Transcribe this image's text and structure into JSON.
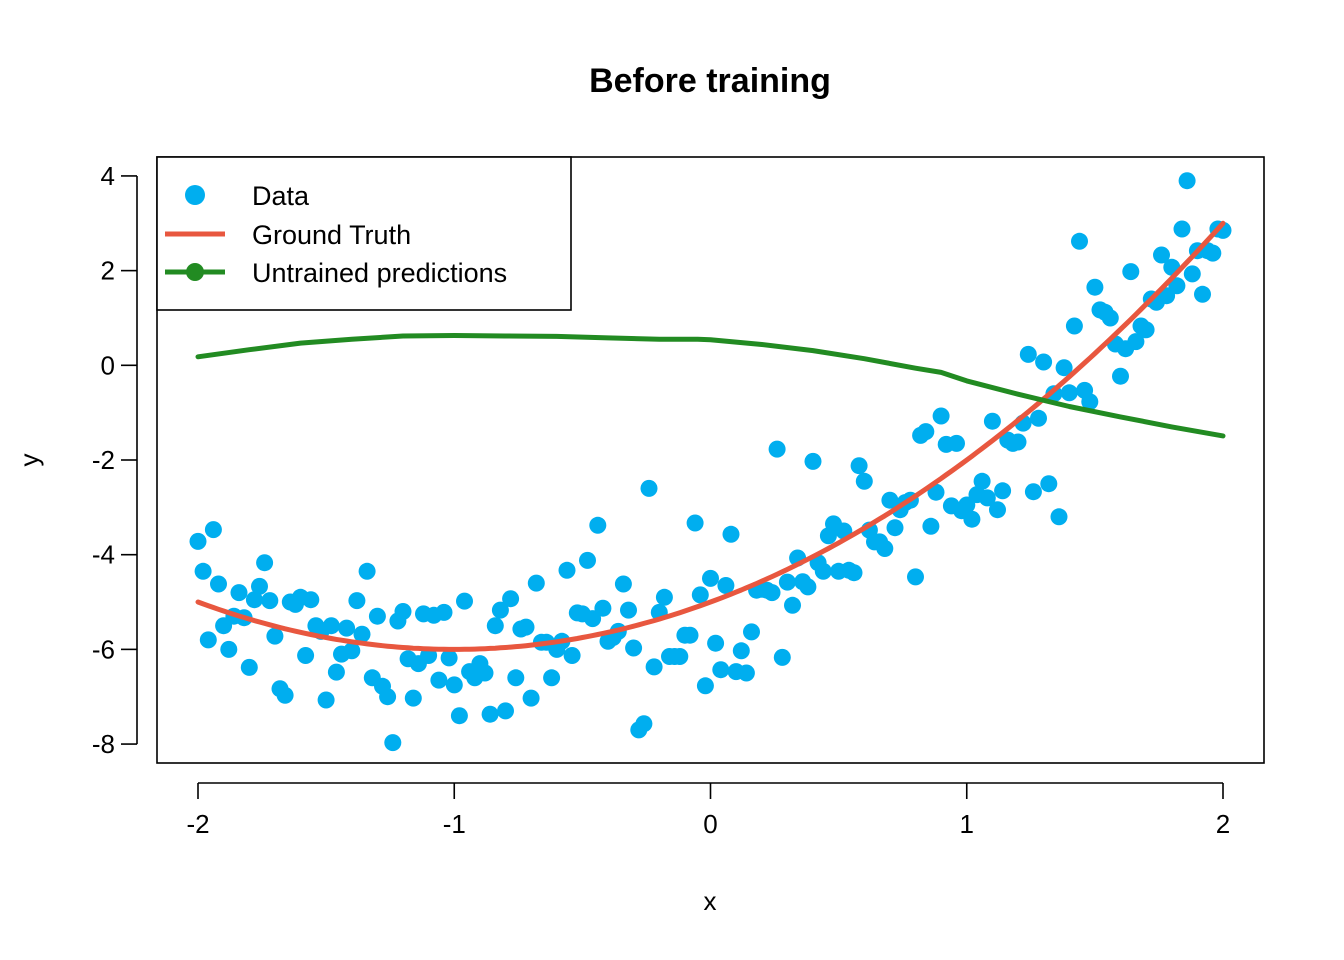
{
  "chart_data": {
    "type": "scatter",
    "title": "Before training",
    "xlabel": "x",
    "ylabel": "y",
    "xlim": [
      -2.16,
      2.16
    ],
    "ylim": [
      -8.4,
      4.4
    ],
    "grid": false,
    "legend_position": "top-left",
    "x_ticks": [
      "-2",
      "-1",
      "0",
      "1",
      "2"
    ],
    "y_ticks": [
      "-8",
      "-6",
      "-4",
      "-2",
      "0",
      "2",
      "4"
    ],
    "colors": {
      "data": "#00AEEF",
      "ground_truth": "#E8573F",
      "untrained": "#228B22"
    },
    "legend": [
      "Data",
      "Ground Truth",
      "Untrained predictions"
    ],
    "series": [
      {
        "name": "Data",
        "kind": "points",
        "points": [
          [
            -2.0,
            -3.72
          ],
          [
            -1.98,
            -4.35
          ],
          [
            -1.96,
            -5.8
          ],
          [
            -1.94,
            -3.47
          ],
          [
            -1.92,
            -4.62
          ],
          [
            -1.9,
            -5.5
          ],
          [
            -1.88,
            -6.0
          ],
          [
            -1.86,
            -5.3
          ],
          [
            -1.84,
            -4.8
          ],
          [
            -1.82,
            -5.33
          ],
          [
            -1.8,
            -6.38
          ],
          [
            -1.78,
            -4.95
          ],
          [
            -1.76,
            -4.67
          ],
          [
            -1.74,
            -4.17
          ],
          [
            -1.72,
            -4.97
          ],
          [
            -1.7,
            -5.72
          ],
          [
            -1.68,
            -6.83
          ],
          [
            -1.66,
            -6.97
          ],
          [
            -1.64,
            -5.0
          ],
          [
            -1.62,
            -5.05
          ],
          [
            -1.6,
            -4.9
          ],
          [
            -1.58,
            -6.13
          ],
          [
            -1.56,
            -4.95
          ],
          [
            -1.54,
            -5.5
          ],
          [
            -1.52,
            -5.62
          ],
          [
            -1.5,
            -7.07
          ],
          [
            -1.48,
            -5.5
          ],
          [
            -1.46,
            -6.48
          ],
          [
            -1.44,
            -6.1
          ],
          [
            -1.42,
            -5.55
          ],
          [
            -1.4,
            -6.03
          ],
          [
            -1.38,
            -4.97
          ],
          [
            -1.36,
            -5.68
          ],
          [
            -1.34,
            -4.35
          ],
          [
            -1.32,
            -6.6
          ],
          [
            -1.3,
            -5.3
          ],
          [
            -1.28,
            -6.78
          ],
          [
            -1.26,
            -7.0
          ],
          [
            -1.24,
            -7.97
          ],
          [
            -1.22,
            -5.4
          ],
          [
            -1.2,
            -5.2
          ],
          [
            -1.18,
            -6.2
          ],
          [
            -1.16,
            -7.03
          ],
          [
            -1.14,
            -6.3
          ],
          [
            -1.12,
            -5.25
          ],
          [
            -1.1,
            -6.13
          ],
          [
            -1.08,
            -5.28
          ],
          [
            -1.06,
            -6.65
          ],
          [
            -1.04,
            -5.22
          ],
          [
            -1.02,
            -6.18
          ],
          [
            -1.0,
            -6.75
          ],
          [
            -0.98,
            -7.4
          ],
          [
            -0.96,
            -4.98
          ],
          [
            -0.94,
            -6.47
          ],
          [
            -0.92,
            -6.6
          ],
          [
            -0.9,
            -6.3
          ],
          [
            -0.88,
            -6.5
          ],
          [
            -0.86,
            -7.37
          ],
          [
            -0.84,
            -5.5
          ],
          [
            -0.82,
            -5.17
          ],
          [
            -0.8,
            -7.3
          ],
          [
            -0.78,
            -4.93
          ],
          [
            -0.76,
            -6.6
          ],
          [
            -0.74,
            -5.57
          ],
          [
            -0.72,
            -5.53
          ],
          [
            -0.7,
            -7.03
          ],
          [
            -0.68,
            -4.6
          ],
          [
            -0.66,
            -5.85
          ],
          [
            -0.64,
            -5.85
          ],
          [
            -0.62,
            -6.6
          ],
          [
            -0.6,
            -6.0
          ],
          [
            -0.58,
            -5.83
          ],
          [
            -0.56,
            -4.33
          ],
          [
            -0.54,
            -6.13
          ],
          [
            -0.52,
            -5.23
          ],
          [
            -0.5,
            -5.25
          ],
          [
            -0.48,
            -4.12
          ],
          [
            -0.46,
            -5.35
          ],
          [
            -0.44,
            -3.38
          ],
          [
            -0.42,
            -5.13
          ],
          [
            -0.4,
            -5.83
          ],
          [
            -0.38,
            -5.75
          ],
          [
            -0.36,
            -5.62
          ],
          [
            -0.34,
            -4.62
          ],
          [
            -0.32,
            -5.17
          ],
          [
            -0.3,
            -5.97
          ],
          [
            -0.28,
            -7.7
          ],
          [
            -0.26,
            -7.57
          ],
          [
            -0.24,
            -2.6
          ],
          [
            -0.22,
            -6.37
          ],
          [
            -0.2,
            -5.22
          ],
          [
            -0.18,
            -4.9
          ],
          [
            -0.16,
            -6.15
          ],
          [
            -0.14,
            -6.15
          ],
          [
            -0.12,
            -6.15
          ],
          [
            -0.1,
            -5.7
          ],
          [
            -0.08,
            -5.7
          ],
          [
            -0.06,
            -3.33
          ],
          [
            -0.04,
            -4.85
          ],
          [
            -0.02,
            -6.77
          ],
          [
            0.0,
            -4.5
          ],
          [
            0.02,
            -5.87
          ],
          [
            0.04,
            -6.43
          ],
          [
            0.06,
            -4.65
          ],
          [
            0.08,
            -3.57
          ],
          [
            0.1,
            -6.47
          ],
          [
            0.12,
            -6.03
          ],
          [
            0.14,
            -6.5
          ],
          [
            0.16,
            -5.63
          ],
          [
            0.18,
            -4.75
          ],
          [
            0.2,
            -4.73
          ],
          [
            0.22,
            -4.75
          ],
          [
            0.24,
            -4.8
          ],
          [
            0.26,
            -1.77
          ],
          [
            0.28,
            -6.17
          ],
          [
            0.3,
            -4.58
          ],
          [
            0.32,
            -5.07
          ],
          [
            0.34,
            -4.07
          ],
          [
            0.36,
            -4.57
          ],
          [
            0.38,
            -4.68
          ],
          [
            0.4,
            -2.03
          ],
          [
            0.42,
            -4.17
          ],
          [
            0.44,
            -4.35
          ],
          [
            0.46,
            -3.6
          ],
          [
            0.48,
            -3.35
          ],
          [
            0.5,
            -4.35
          ],
          [
            0.52,
            -3.5
          ],
          [
            0.54,
            -4.33
          ],
          [
            0.56,
            -4.38
          ],
          [
            0.58,
            -2.12
          ],
          [
            0.6,
            -2.45
          ],
          [
            0.62,
            -3.48
          ],
          [
            0.64,
            -3.73
          ],
          [
            0.66,
            -3.73
          ],
          [
            0.68,
            -3.87
          ],
          [
            0.7,
            -2.85
          ],
          [
            0.72,
            -3.43
          ],
          [
            0.74,
            -3.05
          ],
          [
            0.76,
            -2.9
          ],
          [
            0.78,
            -2.85
          ],
          [
            0.8,
            -4.47
          ],
          [
            0.82,
            -1.48
          ],
          [
            0.84,
            -1.4
          ],
          [
            0.86,
            -3.4
          ],
          [
            0.88,
            -2.68
          ],
          [
            0.9,
            -1.07
          ],
          [
            0.92,
            -1.67
          ],
          [
            0.94,
            -2.97
          ],
          [
            0.96,
            -1.65
          ],
          [
            0.98,
            -3.07
          ],
          [
            1.0,
            -2.95
          ],
          [
            1.02,
            -3.25
          ],
          [
            1.04,
            -2.73
          ],
          [
            1.06,
            -2.45
          ],
          [
            1.08,
            -2.8
          ],
          [
            1.1,
            -1.18
          ],
          [
            1.12,
            -3.05
          ],
          [
            1.14,
            -2.65
          ],
          [
            1.16,
            -1.58
          ],
          [
            1.18,
            -1.65
          ],
          [
            1.2,
            -1.62
          ],
          [
            1.22,
            -1.22
          ],
          [
            1.24,
            0.23
          ],
          [
            1.26,
            -2.67
          ],
          [
            1.28,
            -1.12
          ],
          [
            1.3,
            0.07
          ],
          [
            1.32,
            -2.5
          ],
          [
            1.34,
            -0.6
          ],
          [
            1.36,
            -3.2
          ],
          [
            1.38,
            -0.05
          ],
          [
            1.4,
            -0.58
          ],
          [
            1.42,
            0.83
          ],
          [
            1.44,
            2.62
          ],
          [
            1.46,
            -0.53
          ],
          [
            1.48,
            -0.77
          ],
          [
            1.5,
            1.65
          ],
          [
            1.52,
            1.17
          ],
          [
            1.54,
            1.12
          ],
          [
            1.56,
            1.0
          ],
          [
            1.58,
            0.45
          ],
          [
            1.6,
            -0.23
          ],
          [
            1.62,
            0.35
          ],
          [
            1.64,
            1.98
          ],
          [
            1.66,
            0.5
          ],
          [
            1.68,
            0.83
          ],
          [
            1.7,
            0.75
          ],
          [
            1.72,
            1.4
          ],
          [
            1.74,
            1.33
          ],
          [
            1.76,
            2.33
          ],
          [
            1.78,
            1.47
          ],
          [
            1.8,
            2.07
          ],
          [
            1.82,
            1.68
          ],
          [
            1.84,
            2.88
          ],
          [
            1.86,
            3.9
          ],
          [
            1.88,
            1.93
          ],
          [
            1.9,
            2.42
          ],
          [
            1.92,
            1.5
          ],
          [
            1.94,
            2.42
          ],
          [
            1.96,
            2.37
          ],
          [
            1.98,
            2.88
          ],
          [
            2.0,
            2.85
          ]
        ]
      },
      {
        "name": "Ground Truth",
        "kind": "line",
        "function": "x^2 + 2x - 5",
        "x_range": [
          -2,
          2
        ]
      },
      {
        "name": "Untrained predictions",
        "kind": "line",
        "points": [
          [
            -2.0,
            0.18
          ],
          [
            -1.8,
            0.33
          ],
          [
            -1.6,
            0.47
          ],
          [
            -1.4,
            0.55
          ],
          [
            -1.2,
            0.62
          ],
          [
            -1.0,
            0.63
          ],
          [
            -0.8,
            0.62
          ],
          [
            -0.6,
            0.61
          ],
          [
            -0.4,
            0.58
          ],
          [
            -0.2,
            0.55
          ],
          [
            -0.05,
            0.55
          ],
          [
            0.0,
            0.54
          ],
          [
            0.2,
            0.44
          ],
          [
            0.4,
            0.31
          ],
          [
            0.6,
            0.14
          ],
          [
            0.8,
            -0.06
          ],
          [
            0.9,
            -0.15
          ],
          [
            1.0,
            -0.33
          ],
          [
            1.2,
            -0.61
          ],
          [
            1.4,
            -0.87
          ],
          [
            1.6,
            -1.09
          ],
          [
            1.8,
            -1.3
          ],
          [
            2.0,
            -1.49
          ]
        ]
      }
    ]
  }
}
